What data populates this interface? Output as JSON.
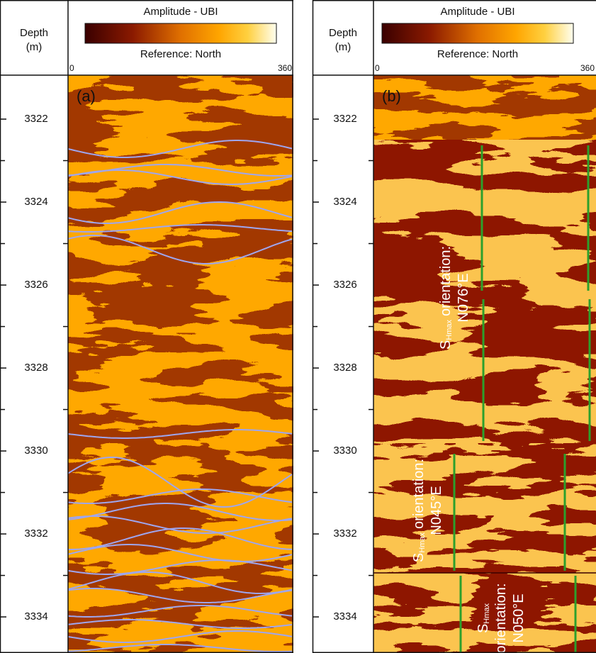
{
  "chart_data": [
    {
      "type": "image-log",
      "panel_label": "(a)",
      "depth_label": [
        "Depth",
        "(m)"
      ],
      "colorbar": {
        "title": "Amplitude - UBI",
        "subtitle": "Reference: North",
        "xlim": [
          0,
          360
        ],
        "xticks": [
          0,
          360
        ]
      },
      "ylim": [
        3320.94,
        3334.87
      ],
      "yticks": [
        3322,
        3324,
        3326,
        3328,
        3330,
        3332,
        3334
      ],
      "minor_yticks": [
        3323,
        3325,
        3327,
        3329,
        3331,
        3333
      ]
    },
    {
      "type": "image-log",
      "panel_label": "(b)",
      "depth_label": [
        "Depth",
        "(m)"
      ],
      "colorbar": {
        "title": "Amplitude - UBI",
        "subtitle": "Reference: North",
        "xlim": [
          0,
          360
        ],
        "xticks": [
          0,
          360
        ]
      },
      "ylim": [
        3320.94,
        3334.87
      ],
      "yticks": [
        3322,
        3324,
        3326,
        3328,
        3330,
        3332,
        3334
      ],
      "minor_yticks": [
        3323,
        3325,
        3327,
        3329,
        3331,
        3333
      ],
      "annotations": [
        {
          "symbol": "S",
          "subscript": "Hmax",
          "label": "orientation:",
          "value": "N076°E"
        },
        {
          "symbol": "S",
          "subscript": "Hmax",
          "label": "orientation:",
          "value": "N045°E"
        },
        {
          "symbol": "S",
          "subscript": "Hmax",
          "label": "orientation:",
          "value": "N050°E"
        }
      ]
    }
  ]
}
